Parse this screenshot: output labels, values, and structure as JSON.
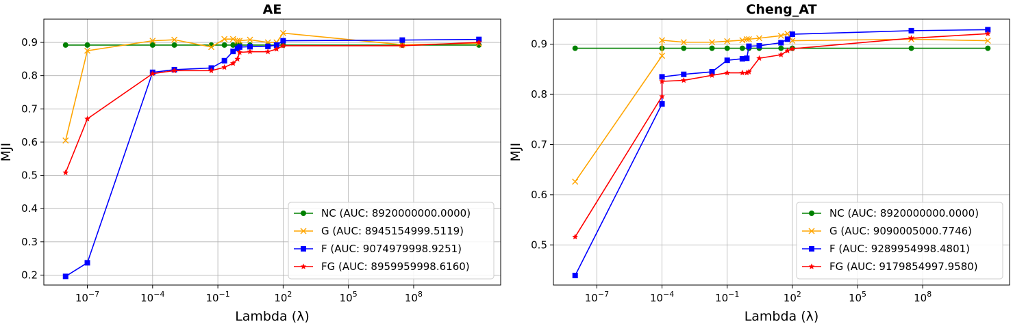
{
  "chart_data": [
    {
      "type": "line",
      "title": "AE",
      "xlabel": "Lambda (λ)",
      "ylabel": "MJI",
      "xscale": "log",
      "xlim": [
        1e-09,
        1000000000000.0
      ],
      "ylim": [
        0.17,
        0.97
      ],
      "xticks": [
        {
          "value": 1e-07,
          "base": "10",
          "exp": "−7"
        },
        {
          "value": 0.0001,
          "base": "10",
          "exp": "−4"
        },
        {
          "value": 0.1,
          "base": "10",
          "exp": "−1"
        },
        {
          "value": 100,
          "base": "10",
          "exp": "2"
        },
        {
          "value": 100000.0,
          "base": "10",
          "exp": "5"
        },
        {
          "value": 100000000.0,
          "base": "10",
          "exp": "8"
        }
      ],
      "yticks": [
        "0.2",
        "0.3",
        "0.4",
        "0.5",
        "0.6",
        "0.7",
        "0.8",
        "0.9"
      ],
      "grid": true,
      "legend_position": "lower-right",
      "series": [
        {
          "name": "NC (AUC: 8920000000.0000)",
          "color": "#008000",
          "marker": "circle",
          "x": [
            1e-08,
            1e-07,
            0.0001,
            0.001,
            0.05,
            0.2,
            0.5,
            0.8,
            1,
            3,
            20,
            50,
            100,
            30000000.0,
            100000000000.0
          ],
          "y": [
            0.892,
            0.892,
            0.892,
            0.892,
            0.892,
            0.892,
            0.892,
            0.892,
            0.892,
            0.892,
            0.892,
            0.892,
            0.892,
            0.892,
            0.892
          ]
        },
        {
          "name": "G (AUC: 8945154999.5119)",
          "color": "#FFA500",
          "marker": "x",
          "x": [
            1e-08,
            1e-07,
            0.0001,
            0.001,
            0.05,
            0.2,
            0.5,
            0.8,
            1,
            3,
            20,
            50,
            100,
            30000000.0,
            100000000000.0
          ],
          "y": [
            0.605,
            0.875,
            0.905,
            0.908,
            0.886,
            0.91,
            0.91,
            0.905,
            0.905,
            0.908,
            0.9,
            0.9,
            0.928,
            0.893,
            0.897
          ]
        },
        {
          "name": "F (AUC: 9074979998.9251)",
          "color": "#0000FF",
          "marker": "square",
          "x": [
            1e-08,
            1e-07,
            0.0001,
            0.001,
            0.05,
            0.2,
            0.5,
            0.8,
            1,
            3,
            20,
            50,
            100,
            30000000.0,
            100000000000.0
          ],
          "y": [
            0.196,
            0.237,
            0.81,
            0.818,
            0.823,
            0.845,
            0.873,
            0.882,
            0.886,
            0.887,
            0.888,
            0.892,
            0.905,
            0.907,
            0.909
          ]
        },
        {
          "name": "FG (AUC: 8959959998.6160)",
          "color": "#FF0000",
          "marker": "star",
          "x": [
            1e-08,
            1e-07,
            0.0001,
            0.001,
            0.05,
            0.2,
            0.5,
            0.8,
            1,
            3,
            20,
            50,
            100,
            30000000.0,
            100000000000.0
          ],
          "y": [
            0.508,
            0.67,
            0.806,
            0.815,
            0.815,
            0.825,
            0.837,
            0.85,
            0.87,
            0.872,
            0.872,
            0.88,
            0.89,
            0.89,
            0.9
          ]
        }
      ]
    },
    {
      "type": "line",
      "title": "Cheng_AT",
      "xlabel": "Lambda (λ)",
      "ylabel": "MJI",
      "xscale": "log",
      "xlim": [
        1e-09,
        1000000000000.0
      ],
      "ylim": [
        0.42,
        0.95
      ],
      "xticks": [
        {
          "value": 1e-07,
          "base": "10",
          "exp": "−7"
        },
        {
          "value": 0.0001,
          "base": "10",
          "exp": "−4"
        },
        {
          "value": 0.1,
          "base": "10",
          "exp": "−1"
        },
        {
          "value": 100,
          "base": "10",
          "exp": "2"
        },
        {
          "value": 100000.0,
          "base": "10",
          "exp": "5"
        },
        {
          "value": 100000000.0,
          "base": "10",
          "exp": "8"
        }
      ],
      "yticks": [
        "0.5",
        "0.6",
        "0.7",
        "0.8",
        "0.9"
      ],
      "grid": true,
      "legend_position": "lower-right",
      "series": [
        {
          "name": "NC (AUC: 8920000000.0000)",
          "color": "#008000",
          "marker": "circle",
          "x": [
            1e-08,
            0.0001,
            0.001,
            0.02,
            0.1,
            0.5,
            1,
            3,
            30,
            100,
            30000000.0,
            100000000000.0
          ],
          "y": [
            0.892,
            0.892,
            0.892,
            0.892,
            0.892,
            0.892,
            0.892,
            0.892,
            0.892,
            0.892,
            0.892,
            0.892
          ]
        },
        {
          "name": "G (AUC: 9090005000.7746)",
          "color": "#FFA500",
          "marker": "x",
          "x": [
            1e-08,
            0.0001,
            0.0001,
            0.001,
            0.02,
            0.1,
            0.5,
            0.8,
            1,
            3,
            30,
            60,
            100,
            30000000.0,
            100000000000.0
          ],
          "y": [
            0.626,
            0.877,
            0.908,
            0.904,
            0.904,
            0.906,
            0.908,
            0.91,
            0.91,
            0.912,
            0.917,
            0.921,
            0.907,
            0.91,
            0.907
          ]
        },
        {
          "name": "F (AUC: 9289954998.4801)",
          "color": "#0000FF",
          "marker": "square",
          "x": [
            1e-08,
            0.0001,
            0.0001,
            0.001,
            0.02,
            0.1,
            0.5,
            0.8,
            1,
            3,
            30,
            60,
            100,
            30000000.0,
            100000000000.0
          ],
          "y": [
            0.439,
            0.781,
            0.835,
            0.84,
            0.845,
            0.868,
            0.871,
            0.872,
            0.896,
            0.897,
            0.903,
            0.91,
            0.92,
            0.927,
            0.929
          ]
        },
        {
          "name": "FG (AUC: 9179854997.9580)",
          "color": "#FF0000",
          "marker": "star",
          "x": [
            1e-08,
            0.0001,
            0.0001,
            0.001,
            0.02,
            0.1,
            0.5,
            0.8,
            1,
            3,
            30,
            60,
            100,
            30000000.0,
            100000000000.0
          ],
          "y": [
            0.516,
            0.796,
            0.826,
            0.828,
            0.838,
            0.843,
            0.843,
            0.843,
            0.845,
            0.872,
            0.879,
            0.887,
            0.891,
            0.912,
            0.921
          ]
        }
      ]
    }
  ]
}
